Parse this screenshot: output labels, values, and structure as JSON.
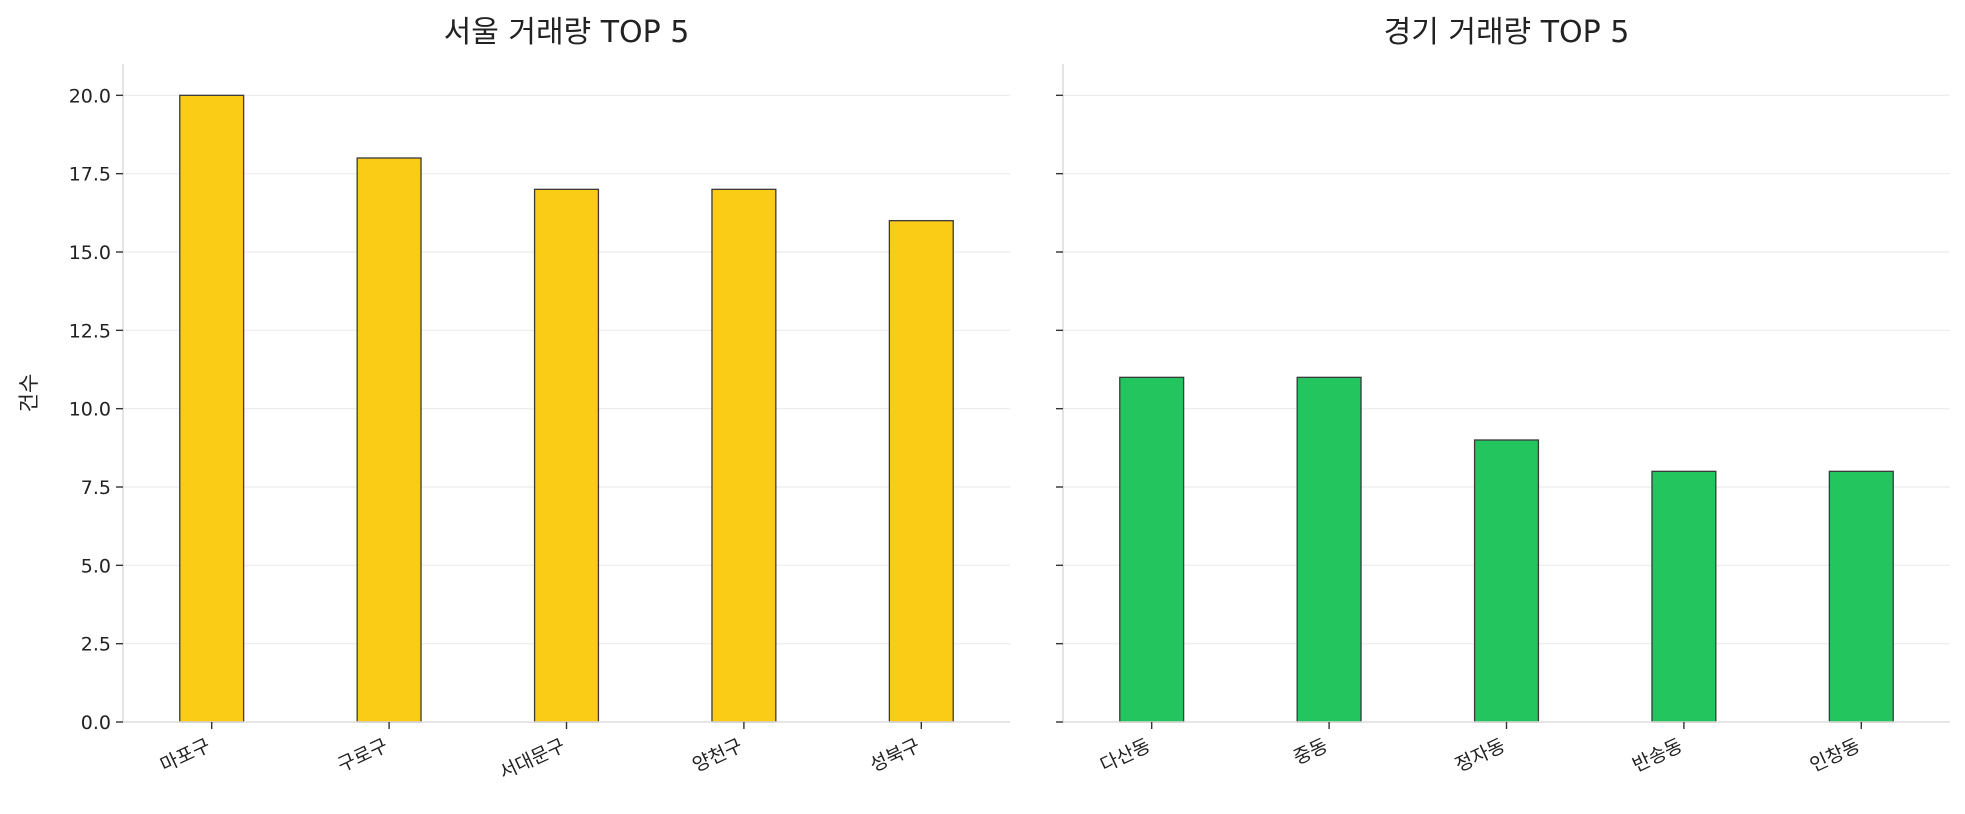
{
  "chart_data": [
    {
      "type": "bar",
      "title": "서울 거래량 TOP 5",
      "categories": [
        "마포구",
        "구로구",
        "서대문구",
        "양천구",
        "성북구"
      ],
      "values": [
        20,
        18,
        17,
        17,
        16
      ],
      "ylabel": "건수",
      "ylim": [
        0,
        21
      ],
      "yticks": [
        "0.0",
        "2.5",
        "5.0",
        "7.5",
        "10.0",
        "12.5",
        "15.0",
        "17.5",
        "20.0"
      ],
      "color": "#facc15",
      "grid": true
    },
    {
      "type": "bar",
      "title": "경기 거래량 TOP 5",
      "categories": [
        "다산동",
        "중동",
        "정자동",
        "반송동",
        "인창동"
      ],
      "values": [
        11,
        11,
        9,
        8,
        8
      ],
      "ylabel": "",
      "ylim": [
        0,
        21
      ],
      "color": "#22c55e",
      "grid": true,
      "sharey": true
    }
  ]
}
